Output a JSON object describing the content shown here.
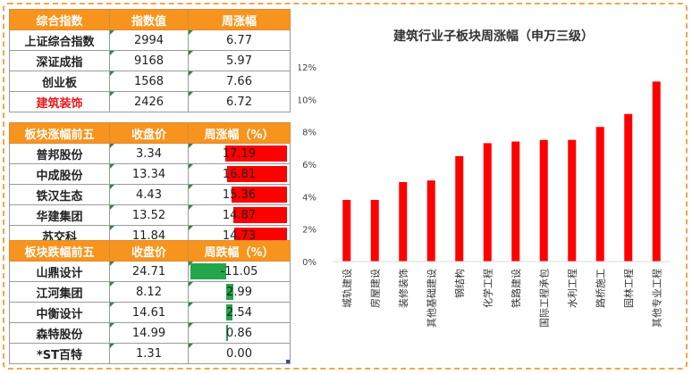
{
  "index_table": {
    "headers": [
      "综合指数",
      "指数值",
      "周涨幅"
    ],
    "rows": [
      {
        "name": "上证综合指数",
        "value": "2994",
        "change": "6.77"
      },
      {
        "name": "深证成指",
        "value": "9168",
        "change": "5.97"
      },
      {
        "name": "创业板",
        "value": "1568",
        "change": "7.66"
      },
      {
        "name": "建筑装饰",
        "value": "2426",
        "change": "6.72"
      }
    ]
  },
  "top5": {
    "headers": [
      "板块涨幅前五",
      "收盘价",
      "周涨幅（%）"
    ],
    "rows": [
      {
        "name": "普邦股份",
        "close": "3.34",
        "change": "17.19",
        "pct": 17.19
      },
      {
        "name": "中成股份",
        "close": "13.34",
        "change": "16.81",
        "pct": 16.81
      },
      {
        "name": "铁汉生态",
        "close": "4.43",
        "change": "15.36",
        "pct": 15.36
      },
      {
        "name": "华建集团",
        "close": "13.52",
        "change": "14.87",
        "pct": 14.87
      },
      {
        "name": "苏交科",
        "close": "11.84",
        "change": "14.73",
        "pct": 14.73
      }
    ]
  },
  "bottom5": {
    "headers": [
      "板块跌幅前五",
      "收盘价",
      "周跌幅（%）"
    ],
    "rows": [
      {
        "name": "山鼎设计",
        "close": "24.71",
        "change": "-11.05",
        "pct": -11.05
      },
      {
        "name": "江河集团",
        "close": "8.12",
        "change": "2.99",
        "pct": 2.99
      },
      {
        "name": "中衡设计",
        "close": "14.61",
        "change": "2.54",
        "pct": 2.54
      },
      {
        "name": "森特股份",
        "close": "14.99",
        "change": "0.86",
        "pct": 0.86
      },
      {
        "name": "*ST百特",
        "close": "1.31",
        "change": "0.00",
        "pct": 0.0
      }
    ]
  },
  "colors": {
    "accent": "#f7941d",
    "bar_red": "#ff0000",
    "bar_green": "#23a54a",
    "highlight_red": "#e8191c"
  },
  "chart_data": {
    "type": "bar",
    "title": "建筑行业子板块周涨幅（申万三级）",
    "categories": [
      "城轨建设",
      "房屋建设",
      "装修装饰",
      "其他基础建设",
      "钢结构",
      "化学工程",
      "铁路建设",
      "国际工程承包",
      "水利工程",
      "路桥施工",
      "园林工程",
      "其他专业工程"
    ],
    "values": [
      3.8,
      3.8,
      4.9,
      5.0,
      6.5,
      7.3,
      7.4,
      7.5,
      7.5,
      8.3,
      9.1,
      11.1
    ],
    "ylim": [
      0,
      12
    ],
    "yticks": [
      "0%",
      "2%",
      "4%",
      "6%",
      "8%",
      "10%",
      "12%"
    ],
    "grid": false,
    "color": "#ff0000"
  }
}
